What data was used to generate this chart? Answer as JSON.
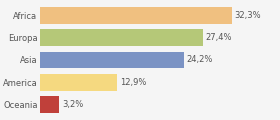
{
  "categories": [
    "Africa",
    "Europa",
    "Asia",
    "America",
    "Oceania"
  ],
  "values": [
    32.3,
    27.4,
    24.2,
    12.9,
    3.2
  ],
  "labels": [
    "32,3%",
    "27,4%",
    "24,2%",
    "12,9%",
    "3,2%"
  ],
  "bar_colors": [
    "#f0c080",
    "#b5c878",
    "#7b93c4",
    "#f5d980",
    "#c0403a"
  ],
  "background_color": "#f5f5f5",
  "bar_height": 0.75,
  "xlim": [
    0,
    40
  ],
  "label_fontsize": 6.0,
  "tick_fontsize": 6.0,
  "figsize": [
    2.8,
    1.2
  ],
  "dpi": 100
}
